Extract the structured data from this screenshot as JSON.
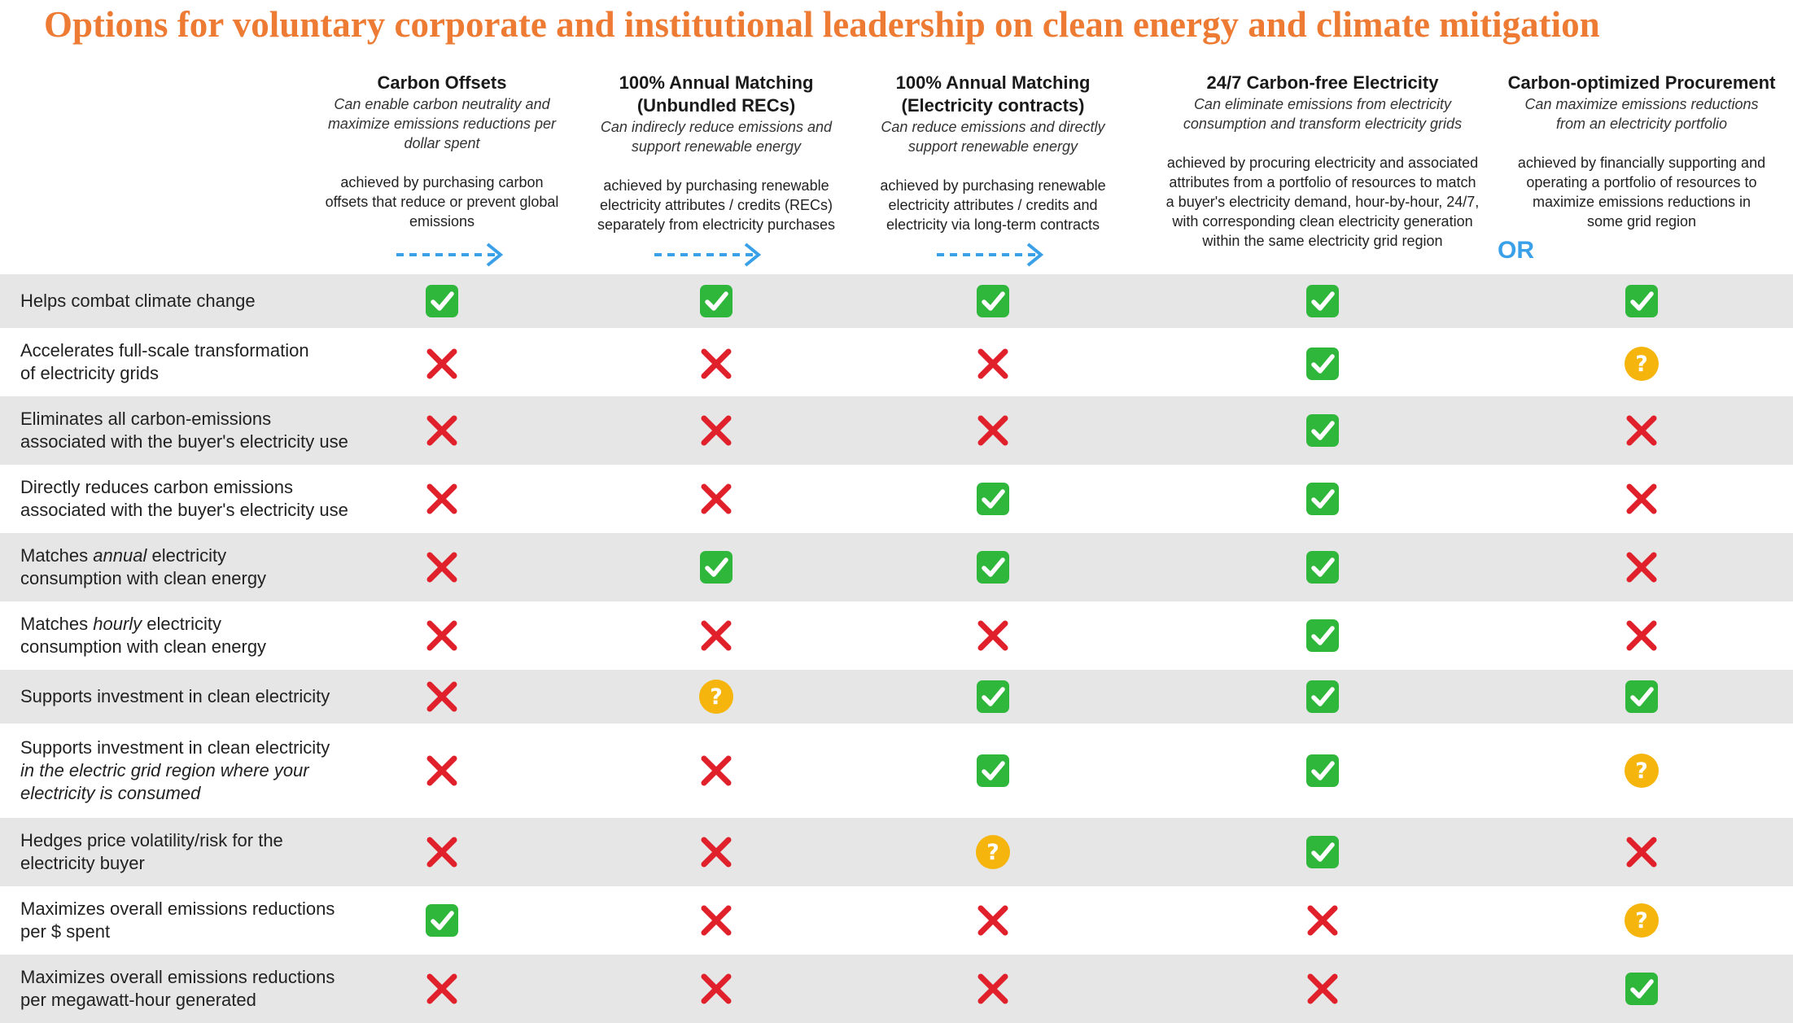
{
  "title": "Options for voluntary corporate and institutional leadership on clean energy and climate mitigation",
  "columns": [
    {
      "title_lines": [
        "Carbon Offsets"
      ],
      "subtitle_lines": [
        "Can enable carbon neutrality and",
        "maximize emissions reductions per",
        "dollar spent"
      ],
      "desc_lines": [
        "achieved by purchasing carbon",
        "offsets that reduce or prevent global",
        "emissions"
      ]
    },
    {
      "title_lines": [
        "100% Annual Matching",
        "(Unbundled RECs)"
      ],
      "subtitle_lines": [
        "Can indirecly reduce emissions and",
        "support renewable energy"
      ],
      "desc_lines": [
        "achieved by purchasing renewable",
        "electricity attributes / credits (RECs)",
        "separately from electricity purchases"
      ]
    },
    {
      "title_lines": [
        "100% Annual Matching",
        "(Electricity contracts)"
      ],
      "subtitle_lines": [
        "Can reduce emissions and directly",
        "support renewable energy"
      ],
      "desc_lines": [
        "achieved by purchasing renewable",
        "electricity attributes / credits and",
        "electricity via long-term contracts"
      ]
    },
    {
      "title_lines": [
        "24/7 Carbon-free Electricity"
      ],
      "subtitle_lines": [
        "Can eliminate emissions from electricity",
        "consumption and transform electricity grids"
      ],
      "desc_lines": [
        "achieved by procuring electricity and associated",
        "attributes from a portfolio of resources to match",
        "a buyer's electricity demand, hour-by-hour, 24/7,",
        "with corresponding clean electricity generation",
        "within the same electricity grid region"
      ]
    },
    {
      "title_lines": [
        "Carbon-optimized Procurement"
      ],
      "subtitle_lines": [
        "Can maximize emissions reductions",
        "from an electricity portfolio"
      ],
      "desc_lines": [
        "achieved by financially supporting and",
        "operating a portfolio of resources to",
        "maximize emissions reductions in",
        "some grid region"
      ]
    }
  ],
  "or_label": "OR",
  "icons": {
    "yes": "check-icon",
    "no": "cross-icon",
    "maybe": "question-icon"
  },
  "colors": {
    "title": "#ee7b33",
    "arrow": "#3aa0e8",
    "check": "#2fb73b",
    "cross": "#e0212b",
    "question": "#f5b50d",
    "row_shade": "#e6e6e6"
  },
  "rows": [
    {
      "label_lines": [
        [
          {
            "t": "Helps combat climate change"
          }
        ]
      ],
      "marks": [
        "yes",
        "yes",
        "yes",
        "yes",
        "yes"
      ]
    },
    {
      "label_lines": [
        [
          {
            "t": "Accelerates full-scale transformation"
          }
        ],
        [
          {
            "t": "of electricity grids"
          }
        ]
      ],
      "marks": [
        "no",
        "no",
        "no",
        "yes",
        "maybe"
      ]
    },
    {
      "label_lines": [
        [
          {
            "t": "Eliminates all carbon-emissions"
          }
        ],
        [
          {
            "t": "associated with the buyer's electricity use"
          }
        ]
      ],
      "marks": [
        "no",
        "no",
        "no",
        "yes",
        "no"
      ]
    },
    {
      "label_lines": [
        [
          {
            "t": "Directly reduces carbon emissions"
          }
        ],
        [
          {
            "t": "associated with the buyer's electricity use"
          }
        ]
      ],
      "marks": [
        "no",
        "no",
        "yes",
        "yes",
        "no"
      ]
    },
    {
      "label_lines": [
        [
          {
            "t": "Matches "
          },
          {
            "t": "annual",
            "i": true
          },
          {
            "t": " electricity"
          }
        ],
        [
          {
            "t": "consumption with clean energy"
          }
        ]
      ],
      "marks": [
        "no",
        "yes",
        "yes",
        "yes",
        "no"
      ]
    },
    {
      "label_lines": [
        [
          {
            "t": "Matches "
          },
          {
            "t": "hourly",
            "i": true
          },
          {
            "t": " electricity"
          }
        ],
        [
          {
            "t": "consumption with clean energy"
          }
        ]
      ],
      "marks": [
        "no",
        "no",
        "no",
        "yes",
        "no"
      ]
    },
    {
      "label_lines": [
        [
          {
            "t": "Supports investment in clean electricity"
          }
        ]
      ],
      "marks": [
        "no",
        "maybe",
        "yes",
        "yes",
        "yes"
      ]
    },
    {
      "label_lines": [
        [
          {
            "t": "Supports investment in clean electricity"
          }
        ],
        [
          {
            "t": "in the electric grid region where your",
            "i": true
          }
        ],
        [
          {
            "t": "electricity is consumed",
            "i": true
          }
        ]
      ],
      "marks": [
        "no",
        "no",
        "yes",
        "yes",
        "maybe"
      ]
    },
    {
      "label_lines": [
        [
          {
            "t": "Hedges price volatility/risk for the"
          }
        ],
        [
          {
            "t": "electricity buyer"
          }
        ]
      ],
      "marks": [
        "no",
        "no",
        "maybe",
        "yes",
        "no"
      ]
    },
    {
      "label_lines": [
        [
          {
            "t": "Maximizes overall emissions reductions"
          }
        ],
        [
          {
            "t": "per $ spent"
          }
        ]
      ],
      "marks": [
        "yes",
        "no",
        "no",
        "no",
        "maybe"
      ]
    },
    {
      "label_lines": [
        [
          {
            "t": "Maximizes overall emissions reductions"
          }
        ],
        [
          {
            "t": "per megawatt-hour generated"
          }
        ]
      ],
      "marks": [
        "no",
        "no",
        "no",
        "no",
        "yes"
      ]
    }
  ]
}
